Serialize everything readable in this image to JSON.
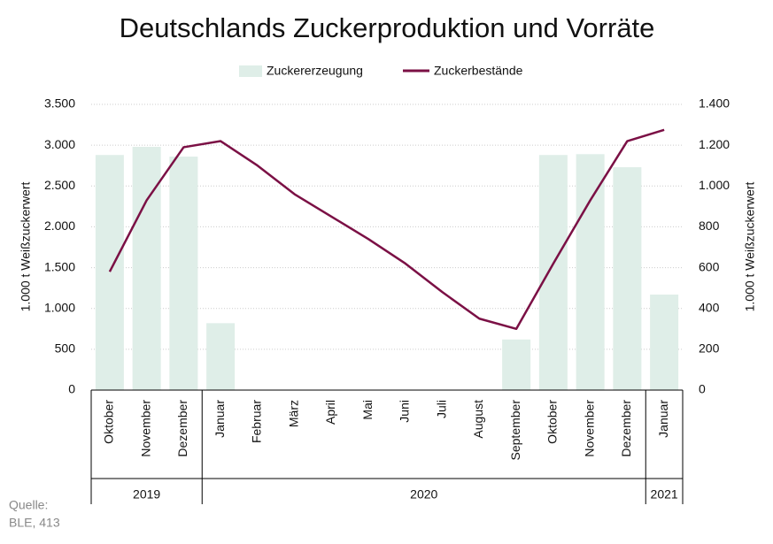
{
  "chart_data": {
    "type": "bar-line",
    "title": "Deutschlands Zuckerproduktion und Vorräte",
    "categories": [
      "Oktober",
      "November",
      "Dezember",
      "Januar",
      "Februar",
      "März",
      "April",
      "Mai",
      "Juni",
      "Juli",
      "August",
      "September",
      "Oktober",
      "November",
      "Dezember",
      "Januar"
    ],
    "groups": [
      {
        "label": "2019",
        "count": 3
      },
      {
        "label": "2020",
        "count": 12
      },
      {
        "label": "2021",
        "count": 1
      }
    ],
    "series": [
      {
        "name": "Zuckererzeugung",
        "type": "bar",
        "color": "#dfeee8",
        "values": [
          2880,
          2980,
          2860,
          820,
          0,
          0,
          0,
          0,
          0,
          0,
          0,
          620,
          2880,
          2890,
          2730,
          1170
        ]
      },
      {
        "name": "Zuckerbestände",
        "type": "line",
        "axis": "y2",
        "color": "#7b1045",
        "values": [
          580,
          930,
          1190,
          1220,
          1100,
          960,
          850,
          740,
          620,
          480,
          350,
          300,
          620,
          930,
          1220,
          1275
        ]
      }
    ],
    "ylabel": "1.000 t Weißzuckerwert",
    "y2label": "1.000 t Weißzuckerwert",
    "ylim": [
      0,
      3500
    ],
    "yticks": [
      0,
      500,
      {
        "value": 1000,
        "label": "1.000"
      },
      {
        "value": 1500,
        "label": "1.500"
      },
      {
        "value": 2000,
        "label": "2.000"
      },
      {
        "value": 2500,
        "label": "2.500"
      },
      {
        "value": 3000,
        "label": "3.000"
      },
      {
        "value": 3500,
        "label": "3.500"
      }
    ],
    "y2lim": [
      0,
      1400
    ],
    "y2ticks": [
      0,
      200,
      400,
      600,
      800,
      {
        "value": 1000,
        "label": "1.000"
      },
      {
        "value": 1200,
        "label": "1.200"
      },
      {
        "value": 1400,
        "label": "1.400"
      }
    ],
    "grid": true,
    "legend": "top",
    "source": [
      "Quelle:",
      "BLE, 413"
    ]
  }
}
